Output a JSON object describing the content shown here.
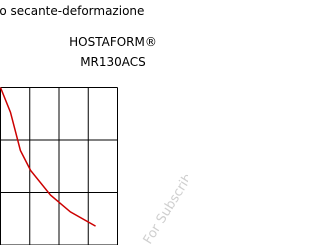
{
  "chart_data": {
    "type": "line",
    "title": "lo secante-deformazione",
    "subtitle_lines": [
      "HOSTAFORM®",
      "MR130ACS"
    ],
    "watermark": "For Subscribers Only",
    "x": [
      0,
      0.34,
      0.68,
      1.03,
      1.71,
      2.39,
      3.25
    ],
    "series": [
      {
        "color": "#cc0000",
        "values": [
          3.0,
          2.53,
          1.8,
          1.42,
          0.95,
          0.63,
          0.36
        ]
      }
    ],
    "xlim": [
      0,
      4
    ],
    "xticks": [
      0,
      1,
      2,
      3,
      4
    ],
    "ylim": [
      0,
      3
    ],
    "yticks": [
      0,
      1,
      2,
      3
    ],
    "grid": true
  }
}
